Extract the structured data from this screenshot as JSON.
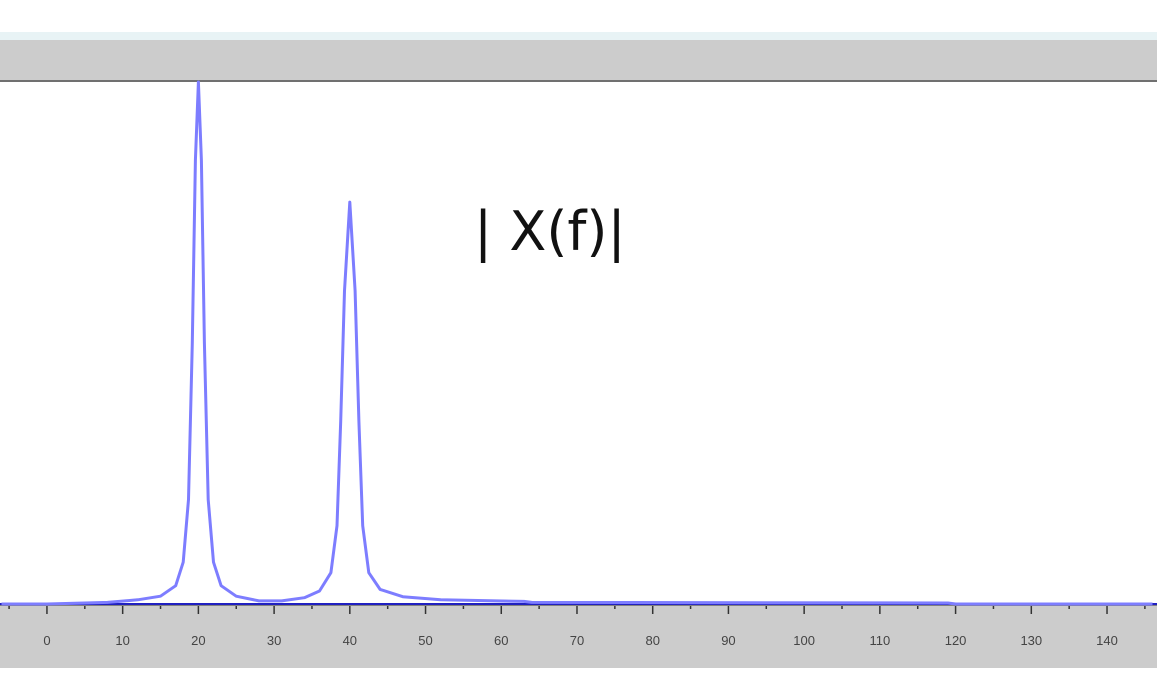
{
  "chart_data": {
    "type": "line",
    "title": "| X(f)|",
    "xlabel": "",
    "ylabel": "",
    "xlim": [
      -6.2,
      146.6
    ],
    "ylim": [
      0,
      1
    ],
    "grid": false,
    "x_ticks": [
      0,
      10,
      20,
      30,
      40,
      50,
      60,
      70,
      80,
      90,
      100,
      110,
      120,
      130,
      140
    ],
    "tick_labels": [
      "0",
      "10",
      "20",
      "30",
      "40",
      "50",
      "60",
      "70",
      "80",
      "90",
      "100",
      "110",
      "120",
      "130",
      "140"
    ],
    "line_color": "#7d7dff",
    "baseline_color": "#2020c0",
    "series": [
      {
        "x": [
          -6,
          0,
          8,
          12,
          15,
          17,
          18,
          18.7,
          19.2,
          19.6,
          20,
          20.4,
          20.8,
          21.3,
          22,
          23,
          25,
          28,
          31,
          34,
          36,
          37.5,
          38.3,
          38.8,
          39.3,
          40,
          40.7,
          41.2,
          41.7,
          42.5,
          44,
          47,
          52,
          63,
          64,
          119,
          120,
          146
        ],
        "y": [
          0,
          0,
          0.003,
          0.008,
          0.015,
          0.035,
          0.08,
          0.2,
          0.5,
          0.85,
          1.0,
          0.85,
          0.5,
          0.2,
          0.08,
          0.035,
          0.015,
          0.006,
          0.006,
          0.012,
          0.025,
          0.06,
          0.15,
          0.35,
          0.6,
          0.77,
          0.6,
          0.35,
          0.15,
          0.06,
          0.028,
          0.014,
          0.008,
          0.005,
          0.003,
          0.002,
          0,
          0
        ]
      }
    ]
  }
}
